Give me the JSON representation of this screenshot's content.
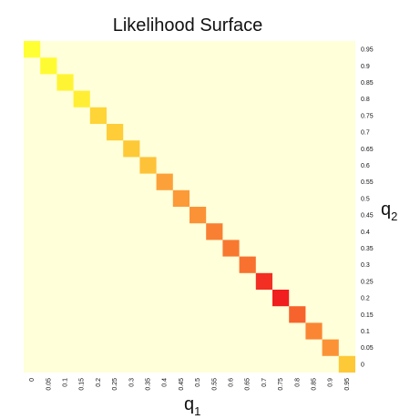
{
  "chart_data": {
    "type": "heatmap",
    "title": "Likelihood Surface",
    "xlabel": "q",
    "xlabel_sub": "1",
    "ylabel": "q",
    "ylabel_sub": "2",
    "x_ticks": [
      "0",
      "0.05",
      "0.1",
      "0.15",
      "0.2",
      "0.25",
      "0.3",
      "0.35",
      "0.4",
      "0.45",
      "0.5",
      "0.55",
      "0.6",
      "0.65",
      "0.7",
      "0.75",
      "0.8",
      "0.85",
      "0.9",
      "0.95"
    ],
    "y_ticks": [
      "0.95",
      "0.9",
      "0.85",
      "0.8",
      "0.75",
      "0.7",
      "0.65",
      "0.6",
      "0.55",
      "0.5",
      "0.45",
      "0.4",
      "0.35",
      "0.3",
      "0.25",
      "0.2",
      "0.15",
      "0.1",
      "0.05",
      "0"
    ],
    "background_value": 0,
    "cells": [
      {
        "q1": 0,
        "q2": 0.95,
        "value": 0.2
      },
      {
        "q1": 0.05,
        "q2": 0.9,
        "value": 0.22
      },
      {
        "q1": 0.1,
        "q2": 0.85,
        "value": 0.25
      },
      {
        "q1": 0.15,
        "q2": 0.8,
        "value": 0.28
      },
      {
        "q1": 0.2,
        "q2": 0.75,
        "value": 0.4
      },
      {
        "q1": 0.25,
        "q2": 0.7,
        "value": 0.43
      },
      {
        "q1": 0.3,
        "q2": 0.65,
        "value": 0.45
      },
      {
        "q1": 0.35,
        "q2": 0.6,
        "value": 0.48
      },
      {
        "q1": 0.4,
        "q2": 0.55,
        "value": 0.62
      },
      {
        "q1": 0.45,
        "q2": 0.5,
        "value": 0.64
      },
      {
        "q1": 0.5,
        "q2": 0.45,
        "value": 0.66
      },
      {
        "q1": 0.55,
        "q2": 0.4,
        "value": 0.72
      },
      {
        "q1": 0.6,
        "q2": 0.35,
        "value": 0.74
      },
      {
        "q1": 0.65,
        "q2": 0.3,
        "value": 0.76
      },
      {
        "q1": 0.7,
        "q2": 0.25,
        "value": 0.95
      },
      {
        "q1": 0.75,
        "q2": 0.2,
        "value": 1.0
      },
      {
        "q1": 0.8,
        "q2": 0.15,
        "value": 0.8
      },
      {
        "q1": 0.85,
        "q2": 0.1,
        "value": 0.7
      },
      {
        "q1": 0.9,
        "q2": 0.05,
        "value": 0.66
      },
      {
        "q1": 0.95,
        "q2": 0,
        "value": 0.45
      }
    ],
    "colors": {
      "background": "#ffffd9",
      "low": "#ffff33",
      "mid": "#fda83a",
      "high": "#f01e1e"
    }
  }
}
